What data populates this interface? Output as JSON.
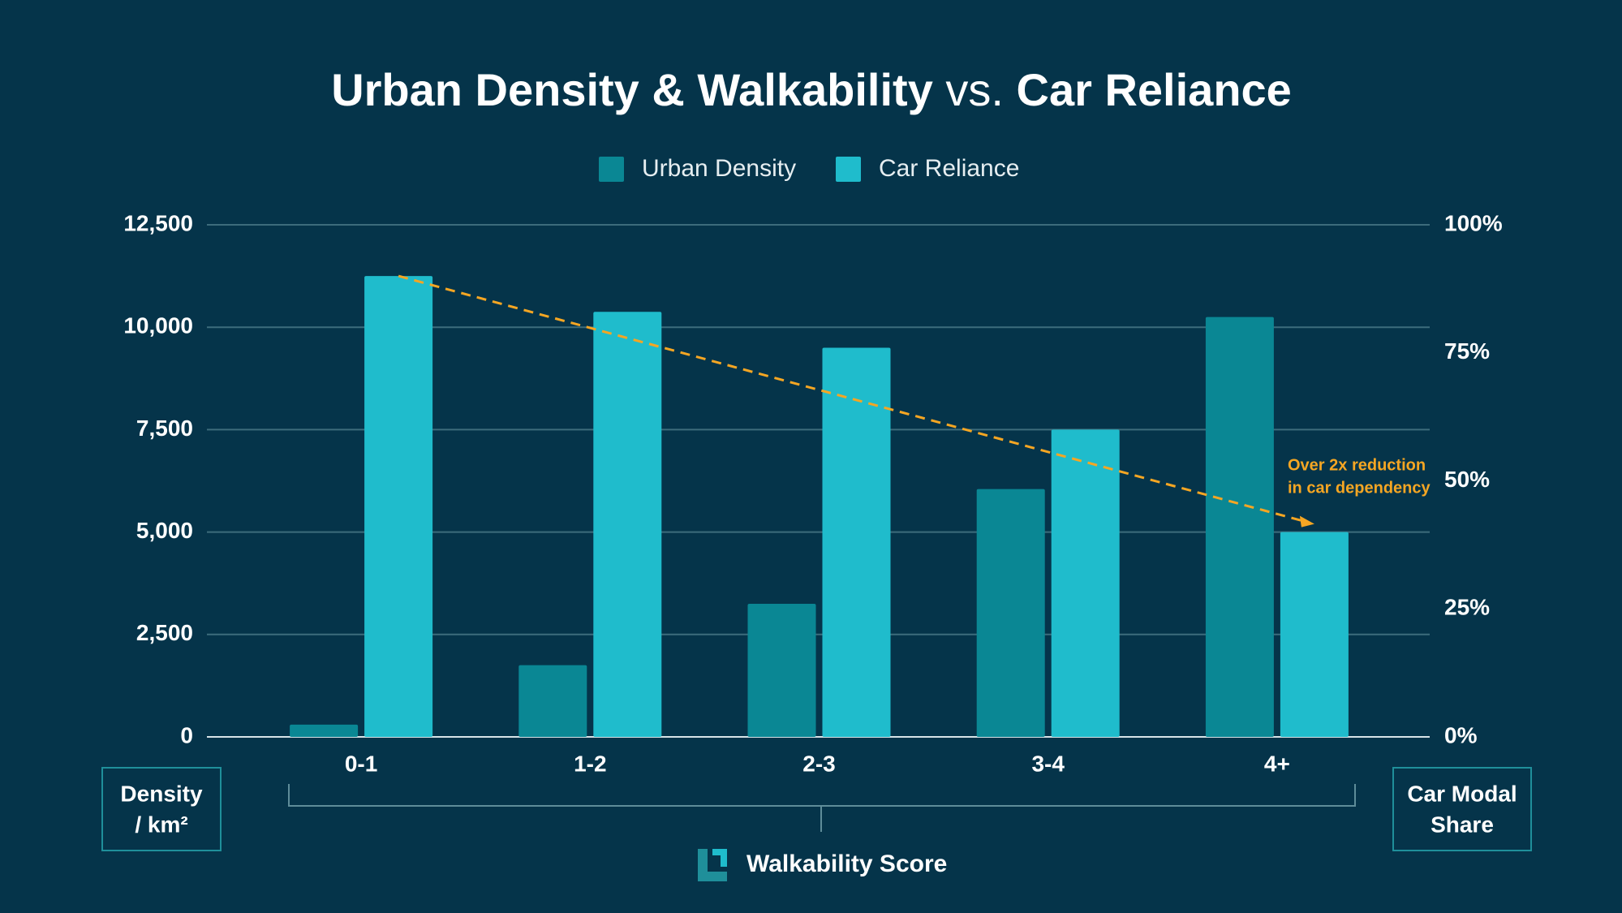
{
  "chart_data": {
    "type": "bar",
    "title": [
      "Urban Density & Walkability",
      "vs.",
      "Car Reliance"
    ],
    "categories": [
      "0-1",
      "1-2",
      "2-3",
      "3-4",
      "4+"
    ],
    "series": [
      {
        "name": "Urban Density",
        "color": "#0a8794",
        "values": [
          300,
          1750,
          3250,
          6050,
          10250
        ]
      },
      {
        "name": "Car Reliance",
        "color": "#1fbccc",
        "axis": "y2",
        "values": [
          90,
          83,
          76,
          60,
          40
        ]
      }
    ],
    "ylim": [
      0,
      12500
    ],
    "yticks": [
      0,
      {
        "value": 2500,
        "label": "2,500"
      },
      {
        "value": 5000,
        "label": "5,000"
      },
      {
        "value": 7500,
        "label": "7,500"
      },
      {
        "value": 10000,
        "label": "10,000"
      },
      {
        "value": 12500,
        "label": "12,500"
      }
    ],
    "y2lim": [
      0,
      100
    ],
    "y2ticks": [
      {
        "value": 0,
        "label": "0%"
      },
      {
        "value": 25,
        "label": "25%"
      },
      {
        "value": 50,
        "label": "50%"
      },
      {
        "value": 75,
        "label": "75%"
      },
      {
        "value": 100,
        "label": "100%"
      }
    ],
    "y_label": [
      "Density",
      "/ km²"
    ],
    "y2_label": [
      "Car Modal",
      "Share"
    ],
    "x_label": "Walkability Score",
    "annotation": [
      "Over 2x reduction",
      "in car dependency"
    ],
    "grid": true,
    "legend": "top"
  }
}
